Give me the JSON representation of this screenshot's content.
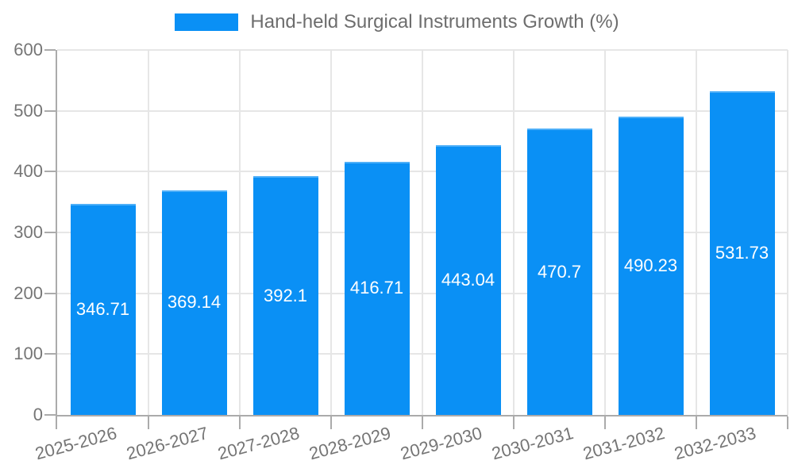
{
  "legend": {
    "label": "Hand-held Surgical Instruments Growth (%)"
  },
  "chart_data": {
    "type": "bar",
    "title": "Hand-held Surgical Instruments Growth (%)",
    "series_name": "Hand-held Surgical Instruments Growth (%)",
    "categories": [
      "2025-2026",
      "2026-2027",
      "2027-2028",
      "2028-2029",
      "2029-2030",
      "2030-2031",
      "2031-2032",
      "2032-2033"
    ],
    "values": [
      346.71,
      369.14,
      392.1,
      416.71,
      443.04,
      470.7,
      490.23,
      531.73
    ],
    "value_labels": [
      "346.71",
      "369.14",
      "392.1",
      "416.71",
      "443.04",
      "470.7",
      "490.23",
      "531.73"
    ],
    "xlabel": "",
    "ylabel": "",
    "ylim": [
      0,
      600
    ],
    "yticks": [
      0,
      100,
      200,
      300,
      400,
      500,
      600
    ],
    "grid": true,
    "legend_position": "top",
    "x_label_rotation_deg": -15,
    "colors": {
      "bar": "#0a90f5",
      "bar_label": "#ffffff",
      "grid": "#e6e6e6",
      "axis": "#ababab",
      "tick_label": "#757575",
      "legend_text": "#6d6d6d"
    }
  }
}
